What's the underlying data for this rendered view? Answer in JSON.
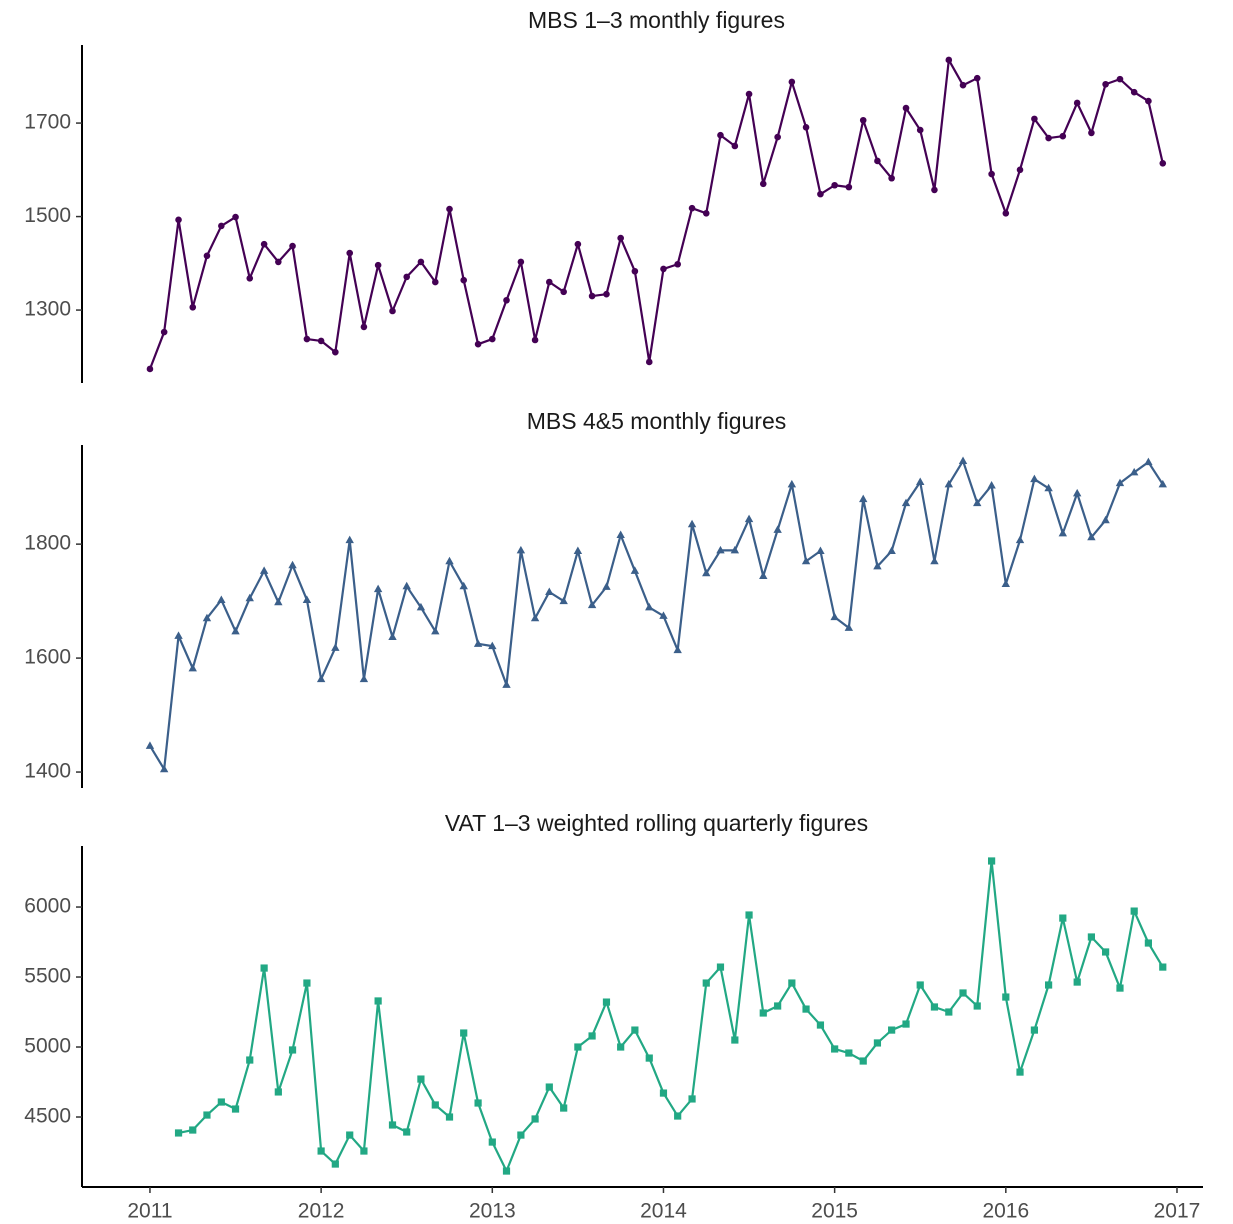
{
  "chart_data": [
    {
      "type": "line",
      "title": "MBS 1–3 monthly figures",
      "color": "#440154",
      "marker": "circle",
      "x": [
        2011,
        2011.083,
        2011.167,
        2011.25,
        2011.333,
        2011.417,
        2011.5,
        2011.583,
        2011.667,
        2011.75,
        2011.833,
        2011.917,
        2012,
        2012.083,
        2012.167,
        2012.25,
        2012.333,
        2012.417,
        2012.5,
        2012.583,
        2012.667,
        2012.75,
        2012.833,
        2012.917,
        2013,
        2013.083,
        2013.167,
        2013.25,
        2013.333,
        2013.417,
        2013.5,
        2013.583,
        2013.667,
        2013.75,
        2013.833,
        2013.917,
        2014,
        2014.083,
        2014.167,
        2014.25,
        2014.333,
        2014.417,
        2014.5,
        2014.583,
        2014.667,
        2014.75,
        2014.833,
        2014.917,
        2015,
        2015.083,
        2015.167,
        2015.25,
        2015.333,
        2015.417,
        2015.5,
        2015.583,
        2015.667,
        2015.75,
        2015.833,
        2015.917,
        2016,
        2016.083,
        2016.167,
        2016.25,
        2016.333,
        2016.417,
        2016.5,
        2016.583,
        2016.667,
        2016.75,
        2016.833,
        2016.917
      ],
      "values": [
        1174,
        1253,
        1493,
        1306,
        1416,
        1480,
        1499,
        1368,
        1441,
        1403,
        1437,
        1238,
        1234,
        1210,
        1422,
        1264,
        1396,
        1298,
        1371,
        1403,
        1360,
        1516,
        1364,
        1227,
        1238,
        1321,
        1403,
        1236,
        1360,
        1339,
        1441,
        1330,
        1334,
        1454,
        1383,
        1189,
        1388,
        1398,
        1518,
        1507,
        1674,
        1651,
        1762,
        1570,
        1670,
        1788,
        1691,
        1548,
        1567,
        1563,
        1706,
        1619,
        1582,
        1732,
        1685,
        1557,
        1835,
        1781,
        1796,
        1591,
        1507,
        1600,
        1709,
        1668,
        1672,
        1743,
        1679,
        1783,
        1794,
        1766,
        1747,
        1614
      ],
      "xlim": [
        2010.603,
        2017.152
      ],
      "ylim": [
        1144,
        1867
      ],
      "yticks": [
        1300,
        1500,
        1700
      ]
    },
    {
      "type": "line",
      "title": "MBS 4&5 monthly figures",
      "color": "#3b5f8a",
      "marker": "triangle",
      "x": [
        2011,
        2011.083,
        2011.167,
        2011.25,
        2011.333,
        2011.417,
        2011.5,
        2011.583,
        2011.667,
        2011.75,
        2011.833,
        2011.917,
        2012,
        2012.083,
        2012.167,
        2012.25,
        2012.333,
        2012.417,
        2012.5,
        2012.583,
        2012.667,
        2012.75,
        2012.833,
        2012.917,
        2013,
        2013.083,
        2013.167,
        2013.25,
        2013.333,
        2013.417,
        2013.5,
        2013.583,
        2013.667,
        2013.75,
        2013.833,
        2013.917,
        2014,
        2014.083,
        2014.167,
        2014.25,
        2014.333,
        2014.417,
        2014.5,
        2014.583,
        2014.667,
        2014.75,
        2014.833,
        2014.917,
        2015,
        2015.083,
        2015.167,
        2015.25,
        2015.333,
        2015.417,
        2015.5,
        2015.583,
        2015.667,
        2015.75,
        2015.833,
        2015.917,
        2016,
        2016.083,
        2016.167,
        2016.25,
        2016.333,
        2016.417,
        2016.5,
        2016.583,
        2016.667,
        2016.75,
        2016.833,
        2016.917
      ],
      "values": [
        1446,
        1405,
        1639,
        1582,
        1670,
        1702,
        1647,
        1705,
        1753,
        1698,
        1763,
        1702,
        1563,
        1618,
        1807,
        1563,
        1721,
        1637,
        1726,
        1689,
        1647,
        1770,
        1726,
        1625,
        1621,
        1553,
        1789,
        1670,
        1716,
        1700,
        1788,
        1693,
        1725,
        1816,
        1753,
        1689,
        1674,
        1614,
        1835,
        1749,
        1789,
        1789,
        1844,
        1744,
        1825,
        1905,
        1770,
        1788,
        1672,
        1653,
        1879,
        1761,
        1788,
        1872,
        1909,
        1770,
        1905,
        1946,
        1872,
        1903,
        1730,
        1807,
        1914,
        1898,
        1819,
        1889,
        1812,
        1842,
        1907,
        1926,
        1944,
        1905
      ],
      "xlim": [
        2010.603,
        2017.152
      ],
      "ylim": [
        1372,
        1974
      ],
      "yticks": [
        1400,
        1600,
        1800
      ]
    },
    {
      "type": "line",
      "title": "VAT 1–3 weighted rolling quarterly figures",
      "color": "#22a884",
      "marker": "square",
      "x": [
        2011,
        2011.083,
        2011.167,
        2011.25,
        2011.333,
        2011.417,
        2011.5,
        2011.583,
        2011.667,
        2011.75,
        2011.833,
        2011.917,
        2012,
        2012.083,
        2012.167,
        2012.25,
        2012.333,
        2012.417,
        2012.5,
        2012.583,
        2012.667,
        2012.75,
        2012.833,
        2012.917,
        2013,
        2013.083,
        2013.167,
        2013.25,
        2013.333,
        2013.417,
        2013.5,
        2013.583,
        2013.667,
        2013.75,
        2013.833,
        2013.917,
        2014,
        2014.083,
        2014.167,
        2014.25,
        2014.333,
        2014.417,
        2014.5,
        2014.583,
        2014.667,
        2014.75,
        2014.833,
        2014.917,
        2015,
        2015.083,
        2015.167,
        2015.25,
        2015.333,
        2015.417,
        2015.5,
        2015.583,
        2015.667,
        2015.75,
        2015.833,
        2015.917,
        2016,
        2016.083,
        2016.167,
        2016.25,
        2016.333,
        2016.417,
        2016.5,
        2016.583,
        2016.667,
        2016.75,
        2016.833,
        2016.917
      ],
      "values": [
        null,
        null,
        4386,
        4407,
        4514,
        4607,
        4557,
        4907,
        5564,
        4679,
        4979,
        5457,
        4257,
        4164,
        4371,
        4257,
        5329,
        4443,
        4393,
        4771,
        4586,
        4500,
        5100,
        4600,
        4321,
        4114,
        4371,
        4486,
        4714,
        4564,
        5000,
        5079,
        5321,
        5000,
        5121,
        4921,
        4671,
        4507,
        4629,
        5457,
        5571,
        5050,
        5943,
        5243,
        5293,
        5457,
        5271,
        5157,
        4986,
        4957,
        4900,
        5029,
        5121,
        5164,
        5443,
        5286,
        5250,
        5386,
        5293,
        6329,
        5357,
        4821,
        5121,
        5443,
        5921,
        5464,
        5786,
        5679,
        5421,
        5971,
        5743,
        5571
      ],
      "xlim": [
        2010.603,
        2017.152
      ],
      "ylim": [
        4000,
        6436
      ],
      "yticks": [
        4500,
        5000,
        5500,
        6000
      ],
      "xticks": [
        2011,
        2012,
        2013,
        2014,
        2015,
        2016,
        2017
      ]
    }
  ]
}
